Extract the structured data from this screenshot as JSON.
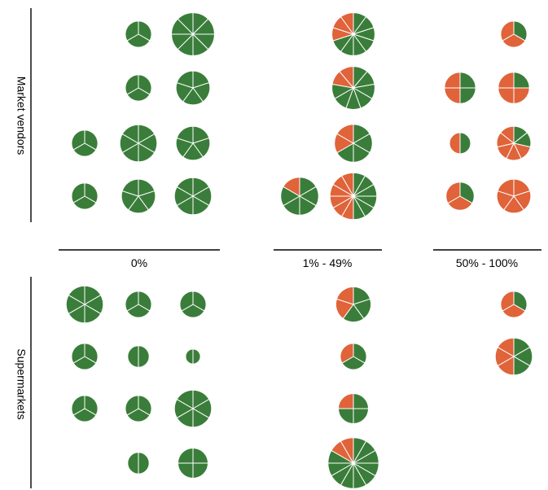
{
  "chart_data": {
    "type": "pie-grid",
    "row_groups": [
      "Market vendors",
      "Supermarkets"
    ],
    "columns": [
      "0%",
      "1% - 49%",
      "50% - 100%"
    ],
    "colors": {
      "green": "#3a7d3a",
      "orange": "#e0633a",
      "divider": "#ffffff"
    },
    "pies": [
      {
        "group": 0,
        "row": 0,
        "col": 0,
        "slot": 1,
        "green": 3,
        "orange": 0,
        "size": 0.67
      },
      {
        "group": 0,
        "row": 0,
        "col": 0,
        "slot": 2,
        "green": 8,
        "orange": 0,
        "size": 1.1
      },
      {
        "group": 0,
        "row": 0,
        "col": 1,
        "slot": 1,
        "green": 7,
        "orange": 3,
        "size": 1.1
      },
      {
        "group": 0,
        "row": 0,
        "col": 2,
        "slot": 1,
        "green": 1,
        "orange": 2,
        "size": 0.67
      },
      {
        "group": 0,
        "row": 1,
        "col": 0,
        "slot": 1,
        "green": 3,
        "orange": 0,
        "size": 0.67
      },
      {
        "group": 0,
        "row": 1,
        "col": 0,
        "slot": 2,
        "green": 5,
        "orange": 0,
        "size": 0.87
      },
      {
        "group": 0,
        "row": 1,
        "col": 1,
        "slot": 1,
        "green": 7,
        "orange": 2,
        "size": 1.1
      },
      {
        "group": 0,
        "row": 1,
        "col": 2,
        "slot": 0,
        "green": 2,
        "orange": 2,
        "size": 0.8
      },
      {
        "group": 0,
        "row": 1,
        "col": 2,
        "slot": 1,
        "green": 1,
        "orange": 3,
        "size": 0.8
      },
      {
        "group": 0,
        "row": 2,
        "col": 0,
        "slot": 0,
        "green": 3,
        "orange": 0,
        "size": 0.67
      },
      {
        "group": 0,
        "row": 2,
        "col": 0,
        "slot": 1,
        "green": 6,
        "orange": 0,
        "size": 0.95
      },
      {
        "group": 0,
        "row": 2,
        "col": 0,
        "slot": 2,
        "green": 5,
        "orange": 0,
        "size": 0.87
      },
      {
        "group": 0,
        "row": 2,
        "col": 1,
        "slot": 1,
        "green": 4,
        "orange": 2,
        "size": 0.97
      },
      {
        "group": 0,
        "row": 2,
        "col": 2,
        "slot": 0,
        "green": 1,
        "orange": 1,
        "size": 0.54
      },
      {
        "group": 0,
        "row": 2,
        "col": 2,
        "slot": 1,
        "green": 2,
        "orange": 5,
        "size": 0.87
      },
      {
        "group": 0,
        "row": 3,
        "col": 0,
        "slot": 0,
        "green": 3,
        "orange": 0,
        "size": 0.67
      },
      {
        "group": 0,
        "row": 3,
        "col": 0,
        "slot": 1,
        "green": 5,
        "orange": 0,
        "size": 0.87
      },
      {
        "group": 0,
        "row": 3,
        "col": 0,
        "slot": 2,
        "green": 6,
        "orange": 0,
        "size": 0.95
      },
      {
        "group": 0,
        "row": 3,
        "col": 1,
        "slot": 0,
        "green": 5,
        "orange": 1,
        "size": 0.97
      },
      {
        "group": 0,
        "row": 3,
        "col": 1,
        "slot": 1,
        "green": 6,
        "orange": 6,
        "size": 1.2
      },
      {
        "group": 0,
        "row": 3,
        "col": 2,
        "slot": 0,
        "green": 1,
        "orange": 2,
        "size": 0.72
      },
      {
        "group": 0,
        "row": 3,
        "col": 2,
        "slot": 1,
        "green": 0,
        "orange": 5,
        "size": 0.87
      },
      {
        "group": 1,
        "row": 0,
        "col": 0,
        "slot": 0,
        "green": 6,
        "orange": 0,
        "size": 0.95
      },
      {
        "group": 1,
        "row": 0,
        "col": 0,
        "slot": 1,
        "green": 3,
        "orange": 0,
        "size": 0.67
      },
      {
        "group": 1,
        "row": 0,
        "col": 0,
        "slot": 2,
        "green": 3,
        "orange": 0,
        "size": 0.67
      },
      {
        "group": 1,
        "row": 0,
        "col": 1,
        "slot": 1,
        "green": 3,
        "orange": 2,
        "size": 0.9
      },
      {
        "group": 1,
        "row": 0,
        "col": 2,
        "slot": 1,
        "green": 1,
        "orange": 2,
        "size": 0.67
      },
      {
        "group": 1,
        "row": 1,
        "col": 0,
        "slot": 0,
        "green": 3,
        "orange": 0,
        "size": 0.67
      },
      {
        "group": 1,
        "row": 1,
        "col": 0,
        "slot": 1,
        "green": 2,
        "orange": 0,
        "size": 0.55
      },
      {
        "group": 1,
        "row": 1,
        "col": 0,
        "slot": 2,
        "green": 2,
        "orange": 0,
        "size": 0.38
      },
      {
        "group": 1,
        "row": 1,
        "col": 1,
        "slot": 1,
        "green": 2,
        "orange": 1,
        "size": 0.67
      },
      {
        "group": 1,
        "row": 1,
        "col": 2,
        "slot": 1,
        "green": 3,
        "orange": 3,
        "size": 0.95
      },
      {
        "group": 1,
        "row": 2,
        "col": 0,
        "slot": 0,
        "green": 3,
        "orange": 0,
        "size": 0.67
      },
      {
        "group": 1,
        "row": 2,
        "col": 0,
        "slot": 1,
        "green": 3,
        "orange": 0,
        "size": 0.67
      },
      {
        "group": 1,
        "row": 2,
        "col": 0,
        "slot": 2,
        "green": 6,
        "orange": 0,
        "size": 0.95
      },
      {
        "group": 1,
        "row": 2,
        "col": 1,
        "slot": 1,
        "green": 3,
        "orange": 1,
        "size": 0.77
      },
      {
        "group": 1,
        "row": 3,
        "col": 0,
        "slot": 1,
        "green": 2,
        "orange": 0,
        "size": 0.55
      },
      {
        "group": 1,
        "row": 3,
        "col": 0,
        "slot": 2,
        "green": 4,
        "orange": 0,
        "size": 0.77
      },
      {
        "group": 1,
        "row": 3,
        "col": 1,
        "slot": 1,
        "green": 10,
        "orange": 2,
        "size": 1.3
      }
    ]
  }
}
